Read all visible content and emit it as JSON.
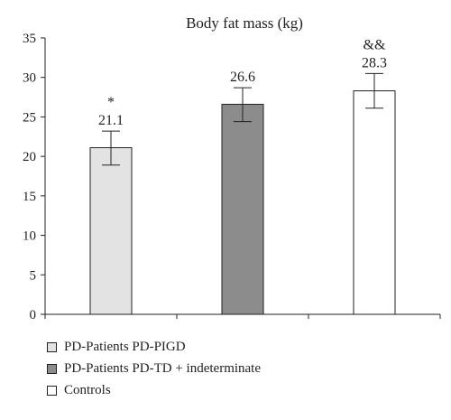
{
  "chart_data": {
    "type": "bar",
    "title": "Body fat mass (kg)",
    "categories": [
      "PD-Patients PD-PIGD",
      "PD-Patients PD-TD + indeterminate",
      "Controls"
    ],
    "values": [
      21.1,
      26.6,
      28.3
    ],
    "error_low": [
      18.9,
      24.4,
      26.1
    ],
    "error_high": [
      23.2,
      28.7,
      30.5
    ],
    "value_labels": [
      "21.1",
      "26.6",
      "28.3"
    ],
    "significance_marks": [
      "*",
      "",
      "&&"
    ],
    "colors": [
      "#e3e3e3",
      "#8c8c8c",
      "#ffffff"
    ],
    "ylim": [
      0,
      35
    ],
    "yticks": [
      "0",
      "5",
      "10",
      "15",
      "20",
      "25",
      "30",
      "35"
    ],
    "legend_position": "bottom-left",
    "grid": false
  }
}
